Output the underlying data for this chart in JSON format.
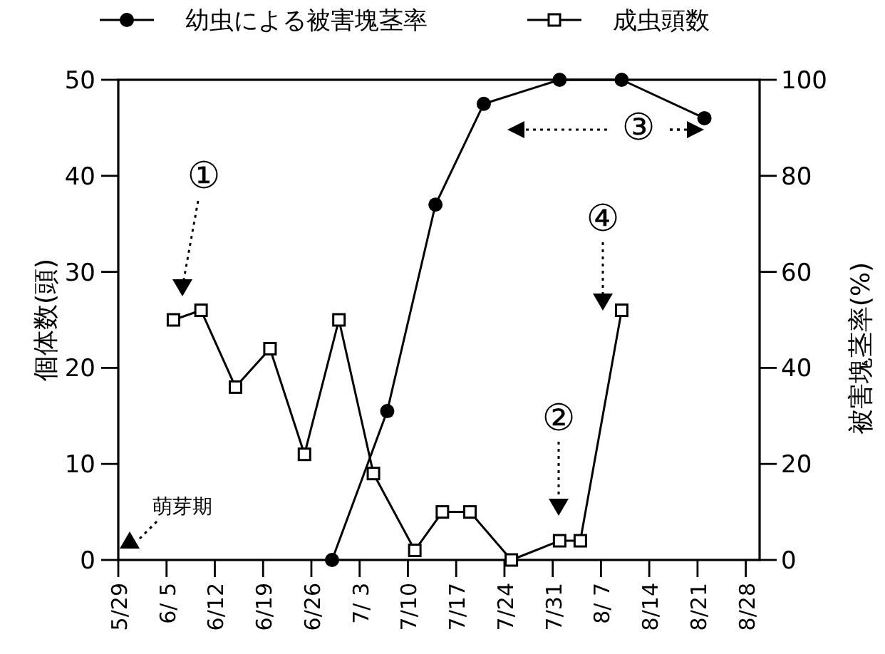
{
  "chart_data": {
    "type": "line",
    "xlim": [
      "--05-29",
      "--08-30"
    ],
    "xticks": [
      {
        "value": "--05-29",
        "label": "5/29"
      },
      {
        "value": "--06-05",
        "label": "6/ 5"
      },
      {
        "value": "--06-12",
        "label": "6/12"
      },
      {
        "value": "--06-19",
        "label": "6/19"
      },
      {
        "value": "--06-26",
        "label": "6/26"
      },
      {
        "value": "--07-03",
        "label": "7/ 3"
      },
      {
        "value": "--07-10",
        "label": "7/10"
      },
      {
        "value": "--07-17",
        "label": "7/17"
      },
      {
        "value": "--07-24",
        "label": "7/24"
      },
      {
        "value": "--07-31",
        "label": "7/31"
      },
      {
        "value": "--08-07",
        "label": "8/ 7"
      },
      {
        "value": "--08-14",
        "label": "8/14"
      },
      {
        "value": "--08-21",
        "label": "8/21"
      },
      {
        "value": "--08-28",
        "label": "8/28"
      }
    ],
    "ylim": [
      0,
      50
    ],
    "yticks": [
      0,
      10,
      20,
      30,
      40,
      50
    ],
    "y2lim": [
      0,
      100
    ],
    "y2ticks": [
      0,
      20,
      40,
      60,
      80,
      100
    ],
    "ylabel": "個体数(頭)",
    "y2label": "被害塊茎率(%)",
    "legend": "top",
    "grid": false,
    "series": [
      {
        "name": "幼虫による被害塊茎率",
        "color": "#000000",
        "axis": "y2",
        "marker": "circle",
        "x": [
          "--06-29",
          "--07-07",
          "--07-14",
          "--07-21",
          "--08-01",
          "--08-10",
          "--08-22"
        ],
        "values": [
          0,
          31,
          74,
          95,
          100,
          100,
          92
        ]
      },
      {
        "name": "成虫頭数",
        "color": "#000000",
        "axis": "y",
        "marker": "square",
        "x": [
          "--06-06",
          "--06-10",
          "--06-15",
          "--06-20",
          "--06-25",
          "--06-30",
          "--07-05",
          "--07-11",
          "--07-15",
          "--07-19",
          "--07-25",
          "--08-01",
          "--08-04",
          "--08-10"
        ],
        "values": [
          25,
          26,
          18,
          22,
          11,
          25,
          9,
          1,
          5,
          5,
          0,
          2,
          2,
          26
        ]
      }
    ],
    "annotations": [
      "萌芽期",
      "①",
      "②",
      "③",
      "④"
    ]
  }
}
